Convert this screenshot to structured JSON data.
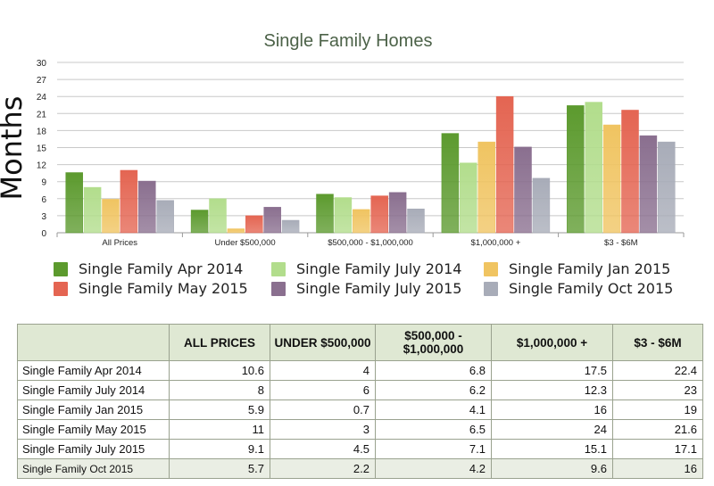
{
  "chart_data": {
    "type": "bar",
    "title": "Single Family Homes",
    "ylabel": "Months",
    "xlabel": "",
    "ylim": [
      0,
      30
    ],
    "yticks": [
      0,
      3,
      6,
      9,
      12,
      15,
      18,
      21,
      24,
      27,
      30
    ],
    "grid": true,
    "legend_position": "bottom",
    "categories": [
      "All Prices",
      "Under $500,000",
      "$500,000 - $1,000,000",
      "$1,000,000 +",
      "$3 - $6M"
    ],
    "series": [
      {
        "name": "Single Family Apr 2014",
        "color": "#5c9a2e",
        "values": [
          10.6,
          4,
          6.8,
          17.5,
          22.4
        ]
      },
      {
        "name": "Single Family July 2014",
        "color": "#b2dd8c",
        "values": [
          8,
          6,
          6.2,
          12.3,
          23
        ]
      },
      {
        "name": "Single Family Jan 2015",
        "color": "#f0c461",
        "values": [
          5.9,
          0.7,
          4.1,
          16,
          19
        ]
      },
      {
        "name": "Single Family May 2015",
        "color": "#e46552",
        "values": [
          11,
          3,
          6.5,
          24,
          21.6
        ]
      },
      {
        "name": "Single Family July 2015",
        "color": "#8a6f8f",
        "values": [
          9.1,
          4.5,
          7.1,
          15.1,
          17.1
        ]
      },
      {
        "name": "Single Family Oct 2015",
        "color": "#a8acb8",
        "values": [
          5.7,
          2.2,
          4.2,
          9.6,
          16
        ]
      }
    ]
  },
  "table": {
    "headers": [
      "",
      "ALL PRICES",
      "UNDER $500,000",
      "$500,000 - $1,000,000",
      "$1,000,000 +",
      "$3 - $6M"
    ],
    "rows": [
      {
        "label": "Single Family Apr 2014",
        "values": [
          "10.6",
          "4",
          "6.8",
          "17.5",
          "22.4"
        ]
      },
      {
        "label": "Single Family July 2014",
        "values": [
          "8",
          "6",
          "6.2",
          "12.3",
          "23"
        ]
      },
      {
        "label": "Single Family Jan 2015",
        "values": [
          "5.9",
          "0.7",
          "4.1",
          "16",
          "19"
        ]
      },
      {
        "label": "Single Family May 2015",
        "values": [
          "11",
          "3",
          "6.5",
          "24",
          "21.6"
        ]
      },
      {
        "label": "Single Family July 2015",
        "values": [
          "9.1",
          "4.5",
          "7.1",
          "15.1",
          "17.1"
        ]
      },
      {
        "label": "Single Family Oct 2015",
        "values": [
          "5.7",
          "2.2",
          "4.2",
          "9.6",
          "16"
        ]
      }
    ]
  }
}
